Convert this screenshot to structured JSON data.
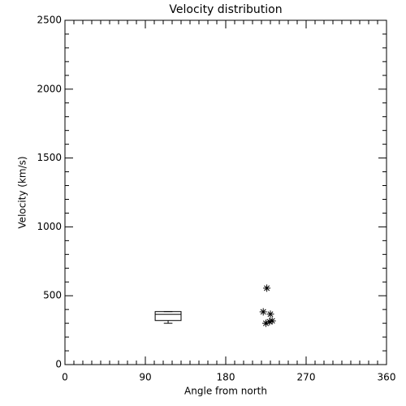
{
  "chart_data": {
    "type": "box",
    "title": "Velocity distribution",
    "xlabel": "Angle from north",
    "ylabel": "Velocity (km/s)",
    "xlim": [
      0,
      360
    ],
    "xticks": [
      0,
      90,
      180,
      270,
      360
    ],
    "xminor": 9,
    "ylim": [
      0,
      2500
    ],
    "yticks": [
      0,
      500,
      1000,
      1500,
      2000,
      2500
    ],
    "yminor": 5,
    "color": "#000000",
    "box": {
      "x_left": 101,
      "x_right": 130,
      "min": 300,
      "q1": 320,
      "median": 365,
      "q3": 385,
      "max": 385
    },
    "points": {
      "x": [
        226,
        222,
        230,
        225,
        229,
        232
      ],
      "values": [
        555,
        383,
        366,
        300,
        312,
        318
      ]
    }
  }
}
